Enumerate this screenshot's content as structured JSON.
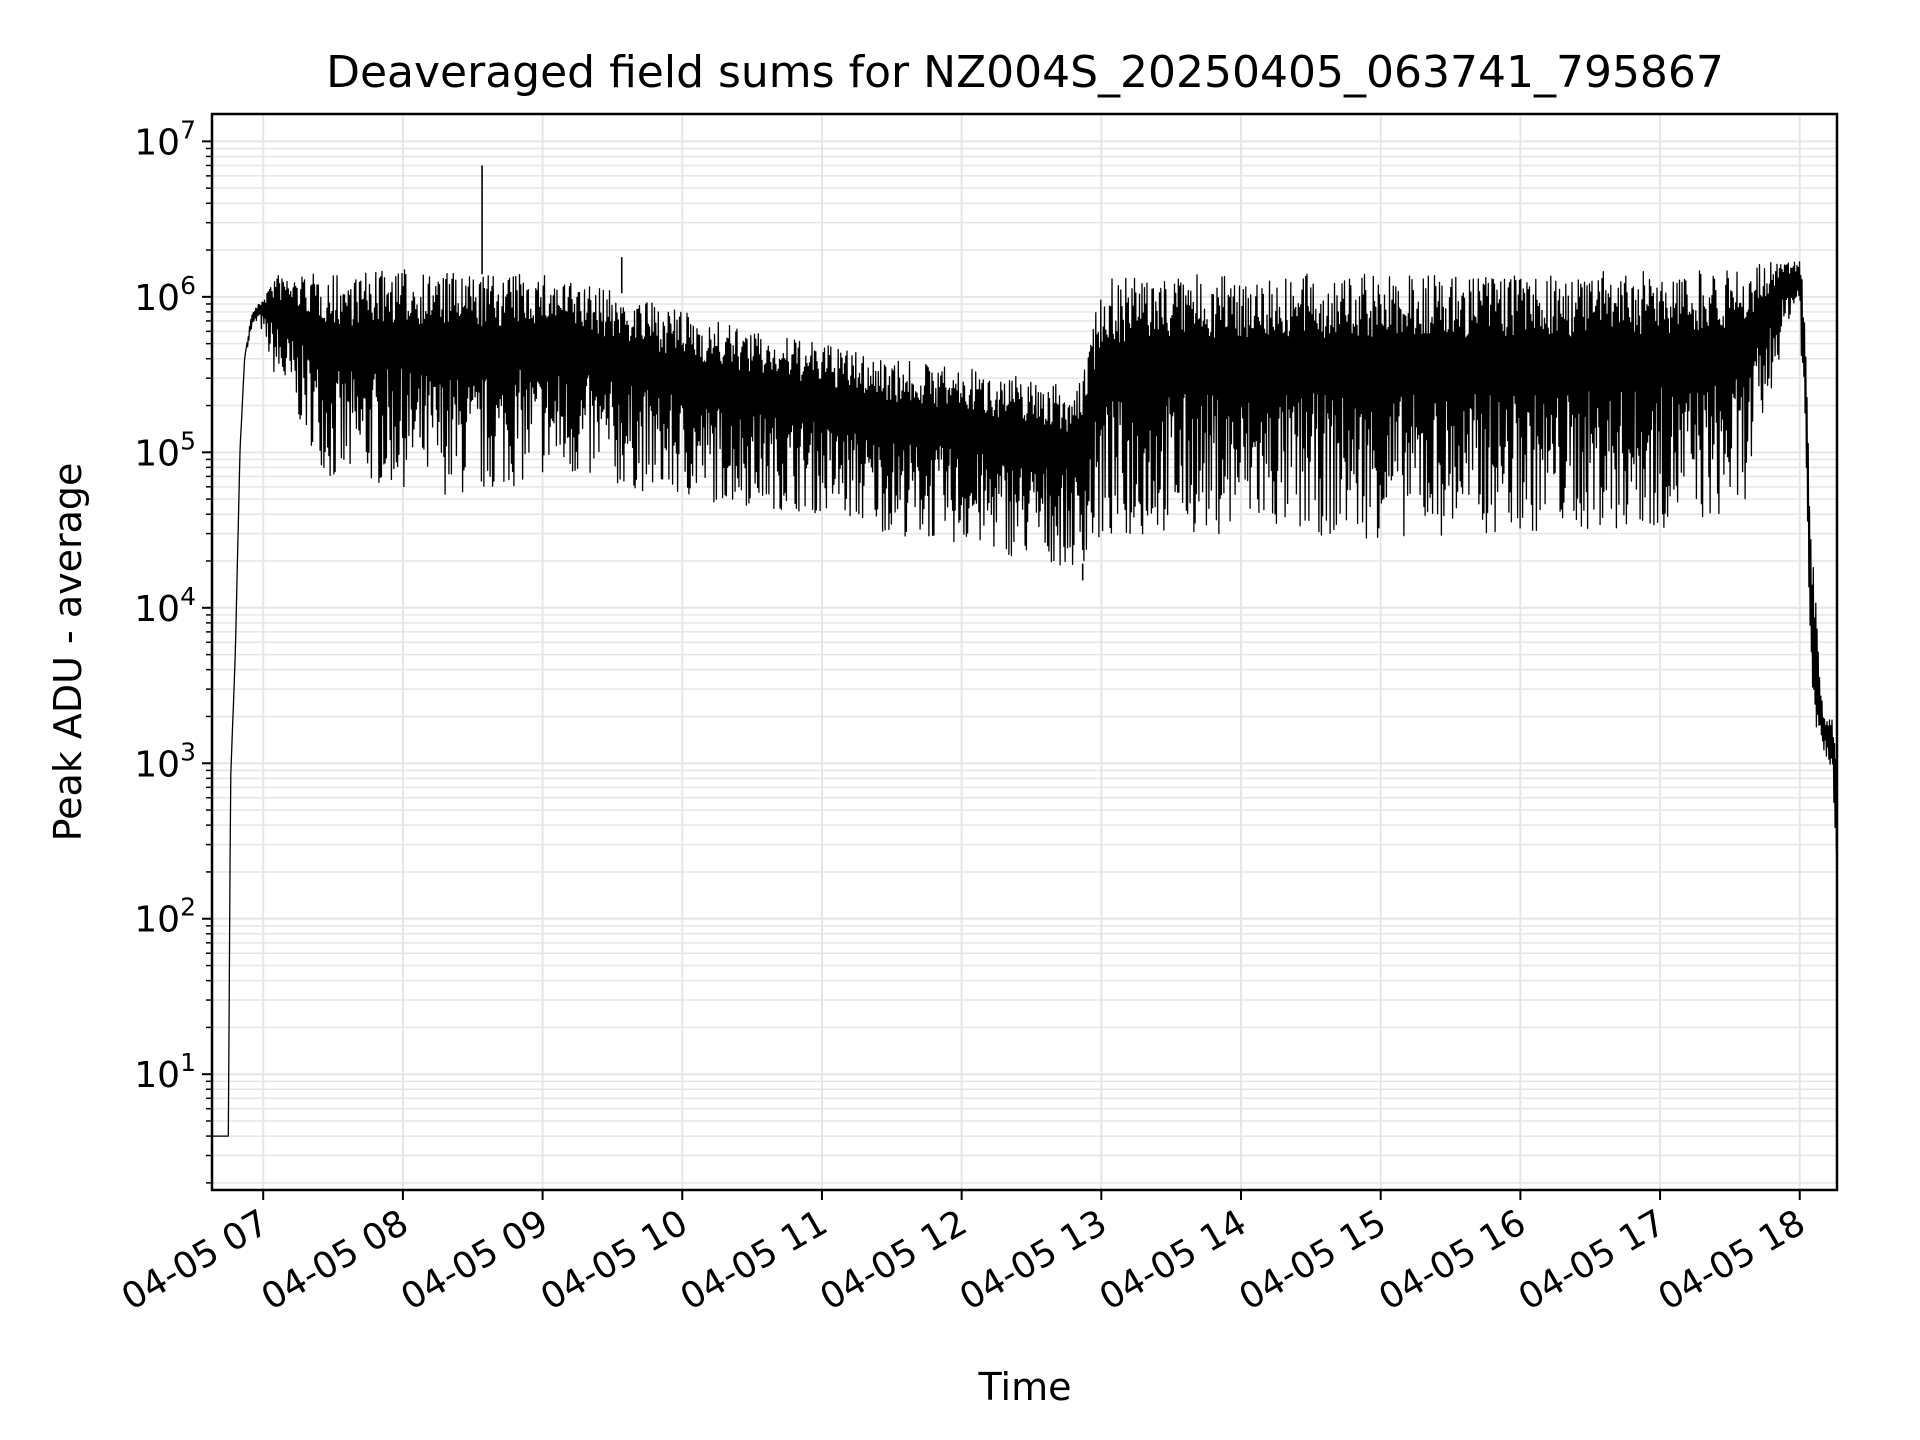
{
  "chart_data": {
    "type": "line",
    "title": "Deaveraged field sums for NZ004S_20250405_063741_795867",
    "xlabel": "Time",
    "ylabel": "Peak ADU - average",
    "y_scale": "log",
    "ylim": [
      1.8,
      15000000
    ],
    "xlim": [
      "04-05 06:38",
      "04-05 18:16"
    ],
    "grid": true,
    "line_color": "#000000",
    "grid_color": "#e6e6e6",
    "x_ticks": [
      {
        "label": "04-05 07",
        "time": "04-05 07:00"
      },
      {
        "label": "04-05 08",
        "time": "04-05 08:00"
      },
      {
        "label": "04-05 09",
        "time": "04-05 09:00"
      },
      {
        "label": "04-05 10",
        "time": "04-05 10:00"
      },
      {
        "label": "04-05 11",
        "time": "04-05 11:00"
      },
      {
        "label": "04-05 12",
        "time": "04-05 12:00"
      },
      {
        "label": "04-05 13",
        "time": "04-05 13:00"
      },
      {
        "label": "04-05 14",
        "time": "04-05 14:00"
      },
      {
        "label": "04-05 15",
        "time": "04-05 15:00"
      },
      {
        "label": "04-05 16",
        "time": "04-05 16:00"
      },
      {
        "label": "04-05 17",
        "time": "04-05 17:00"
      },
      {
        "label": "04-05 18",
        "time": "04-05 18:00"
      }
    ],
    "y_ticks": [
      {
        "base": "10",
        "exp": "1",
        "value": 10
      },
      {
        "base": "10",
        "exp": "2",
        "value": 100
      },
      {
        "base": "10",
        "exp": "3",
        "value": 1000
      },
      {
        "base": "10",
        "exp": "4",
        "value": 10000
      },
      {
        "base": "10",
        "exp": "5",
        "value": 100000
      },
      {
        "base": "10",
        "exp": "6",
        "value": 1000000
      },
      {
        "base": "10",
        "exp": "7",
        "value": 10000000
      }
    ],
    "series": [
      {
        "envelope": {
          "x": [
            "04-05 06:38",
            "04-05 06:45",
            "04-05 06:46",
            "04-05 06:48",
            "04-05 06:50",
            "04-05 06:52",
            "04-05 06:55",
            "04-05 06:58",
            "04-05 07:05",
            "04-05 07:30",
            "04-05 08:00",
            "04-05 08:30",
            "04-05 09:00",
            "04-05 09:30",
            "04-05 10:00",
            "04-05 10:30",
            "04-05 11:00",
            "04-05 11:30",
            "04-05 12:00",
            "04-05 12:30",
            "04-05 12:50",
            "04-05 13:00",
            "04-05 13:30",
            "04-05 14:00",
            "04-05 15:00",
            "04-05 16:00",
            "04-05 17:00",
            "04-05 17:35",
            "04-05 17:55",
            "04-05 18:00",
            "04-05 18:02",
            "04-05 18:05",
            "04-05 18:10",
            "04-05 18:14",
            "04-05 18:16"
          ],
          "upper": [
            4,
            4,
            800,
            5000,
            100000,
            400000,
            800000,
            900000,
            1400000,
            1400000,
            1500000,
            1400000,
            1400000,
            1100000,
            800000,
            600000,
            500000,
            400000,
            350000,
            300000,
            250000,
            1300000,
            1400000,
            1400000,
            1400000,
            1400000,
            1500000,
            1600000,
            1700000,
            1700000,
            1000000,
            30000,
            2000,
            2000,
            1000
          ],
          "lower": [
            4,
            4,
            800,
            5000,
            100000,
            400000,
            600000,
            700000,
            300000,
            60000,
            60000,
            50000,
            70000,
            60000,
            50000,
            45000,
            40000,
            30000,
            25000,
            20000,
            18000,
            25000,
            30000,
            30000,
            28000,
            30000,
            32000,
            40000,
            700000,
            900000,
            100000,
            2000,
            1200,
            900,
            200
          ]
        }
      }
    ],
    "annotations": [
      {
        "type": "spike",
        "x": "04-05 08:34",
        "y": 7000000
      },
      {
        "type": "spike",
        "x": "04-05 09:34",
        "y": 1800000
      },
      {
        "type": "spike",
        "x": "04-05 12:52",
        "y": 15000
      }
    ]
  }
}
